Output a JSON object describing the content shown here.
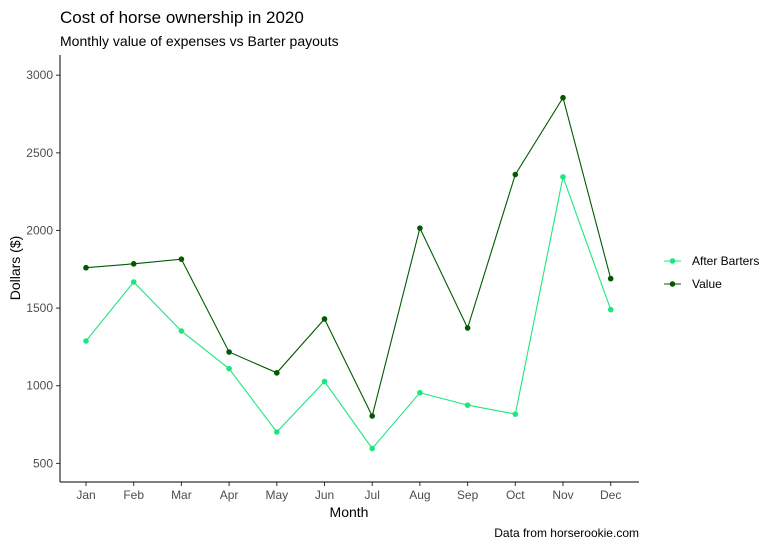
{
  "chart_data": {
    "type": "line",
    "title": "Cost of horse ownership in 2020",
    "subtitle": "Monthly value of expenses vs Barter payouts",
    "caption": "Data from horserookie.com",
    "xlabel": "Month",
    "ylabel": "Dollars ($)",
    "categories": [
      "Jan",
      "Feb",
      "Mar",
      "Apr",
      "May",
      "Jun",
      "Jul",
      "Aug",
      "Sep",
      "Oct",
      "Nov",
      "Dec"
    ],
    "ylim": [
      380,
      3130
    ],
    "yticks": [
      500,
      1000,
      1500,
      2000,
      2500,
      3000
    ],
    "grid": false,
    "legend": {
      "position": "right"
    },
    "series": [
      {
        "name": "After Barters",
        "color": "#1ee67f",
        "values": [
          1288,
          1668,
          1352,
          1110,
          702,
          1027,
          596,
          955,
          875,
          817,
          2345,
          1490
        ]
      },
      {
        "name": "Value",
        "color": "#005a00",
        "values": [
          1760,
          1785,
          1815,
          1217,
          1083,
          1430,
          805,
          2015,
          1372,
          2360,
          2855,
          1690
        ]
      }
    ]
  }
}
